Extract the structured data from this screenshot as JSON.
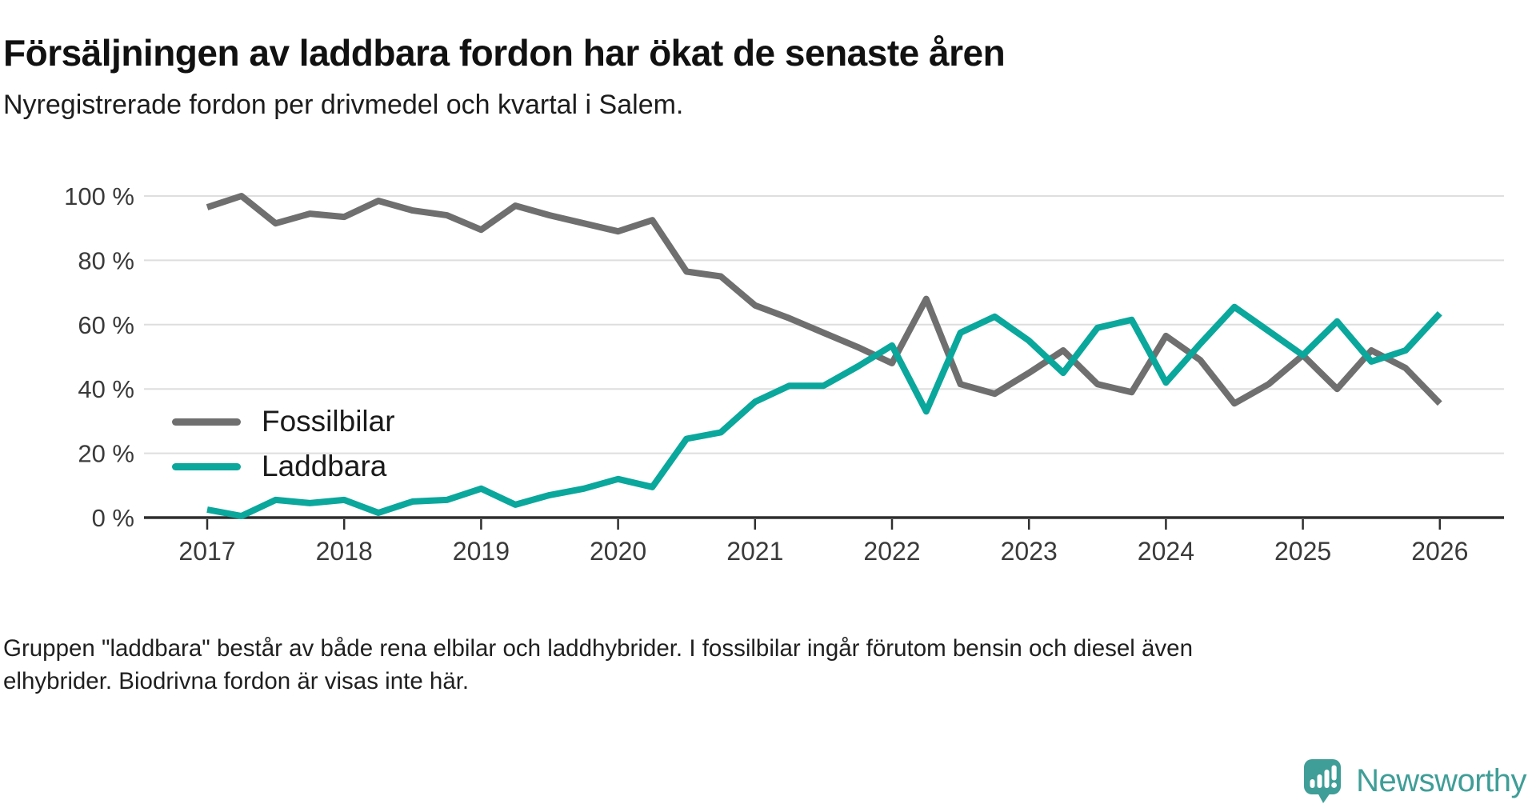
{
  "header": {
    "title": "Försäljningen av laddbara fordon har ökat de senaste åren",
    "subtitle": "Nyregistrerade fordon per drivmedel och kvartal i Salem."
  },
  "chart_data": {
    "type": "line",
    "x": [
      "2017 K1",
      "2017 K2",
      "2017 K3",
      "2017 K4",
      "2018 K1",
      "2018 K2",
      "2018 K3",
      "2018 K4",
      "2019 K1",
      "2019 K2",
      "2019 K3",
      "2019 K4",
      "2020 K1",
      "2020 K2",
      "2020 K3",
      "2020 K4",
      "2021 K1",
      "2021 K2",
      "2021 K3",
      "2021 K4",
      "2022 K1",
      "2022 K2",
      "2022 K3",
      "2022 K4",
      "2023 K1",
      "2023 K2",
      "2023 K3",
      "2023 K4",
      "2024 K1",
      "2024 K2",
      "2024 K3",
      "2024 K4",
      "2025 K1",
      "2025 K2",
      "2025 K3",
      "2025 K4",
      "2026 K1"
    ],
    "x_tick_labels": [
      "2017",
      "2018",
      "2019",
      "2020",
      "2021",
      "2022",
      "2023",
      "2024",
      "2025",
      "2026"
    ],
    "y_ticks": [
      0,
      20,
      40,
      60,
      80,
      100
    ],
    "y_tick_labels": [
      "0 %",
      "20 %",
      "40 %",
      "60 %",
      "80 %",
      "100 %"
    ],
    "ylim": [
      0,
      100
    ],
    "unit": "%",
    "grid": "horizontal",
    "legend_position": "inside-bottom-left",
    "series": [
      {
        "name": "Fossilbilar",
        "color": "#6f6f6f",
        "values": [
          96.5,
          100,
          91.5,
          94.5,
          93.5,
          98.5,
          95.5,
          94,
          89.5,
          97,
          94,
          91.5,
          89,
          92.5,
          76.5,
          75,
          66,
          62,
          57.5,
          53,
          48,
          68,
          41.5,
          38.5,
          45,
          52,
          41.5,
          39,
          56.5,
          49,
          35.5,
          41.5,
          50.5,
          40,
          52,
          46.5,
          35.5
        ]
      },
      {
        "name": "Laddbara",
        "color": "#0aa79c",
        "values": [
          2.5,
          0.5,
          5.5,
          4.5,
          5.5,
          1.5,
          5,
          5.5,
          9,
          4,
          7,
          9,
          12,
          9.5,
          24.5,
          26.5,
          36,
          41,
          41,
          47,
          53.5,
          33,
          57.5,
          62.5,
          55,
          45,
          59,
          61.5,
          42,
          54,
          65.5,
          58,
          50.5,
          61,
          48.5,
          52,
          63.5
        ]
      }
    ]
  },
  "footer": {
    "note": "Gruppen \"laddbara\" består av både rena elbilar och laddhybrider. I fossilbilar ingår förutom bensin och diesel även elhybrider. Biodrivna fordon är visas inte här."
  },
  "branding": {
    "logo_text": "Newsworthy",
    "logo_color": "#3f9e97",
    "logo_icon": "speech-bubble-bar-chart-icon"
  }
}
